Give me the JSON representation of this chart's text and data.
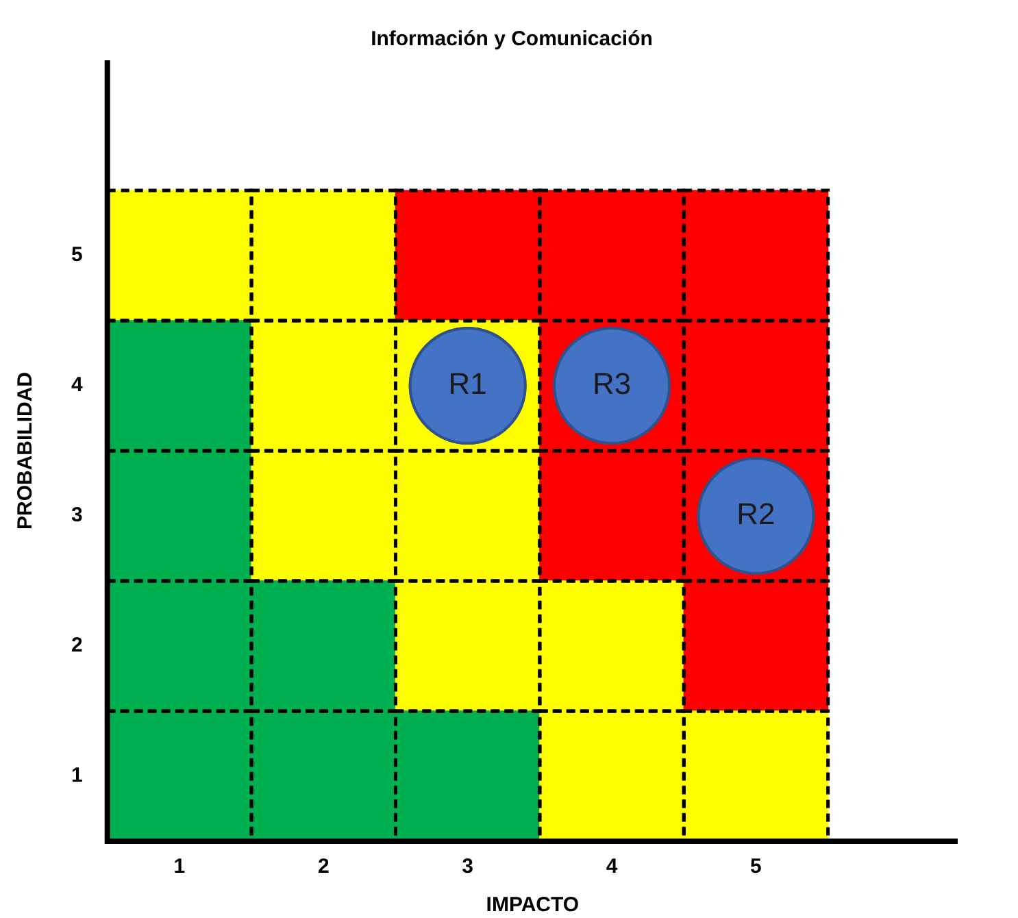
{
  "chart_data": {
    "type": "bar",
    "title": "Información y Comunicación",
    "xlabel": "IMPACTO",
    "ylabel": "PROBABILIDAD",
    "x": [
      1,
      2,
      3,
      4,
      5
    ],
    "series": [
      {
        "values": [
          1,
          1,
          1,
          1,
          1
        ],
        "base": [
          0.5,
          0.5,
          0.5,
          0.5,
          0.5
        ],
        "colors": [
          "#00b050",
          "#00b050",
          "#00b050",
          "#ffff00",
          "#ffff00"
        ]
      },
      {
        "values": [
          1,
          1,
          1,
          1,
          1
        ],
        "base": [
          1.5,
          1.5,
          1.5,
          1.5,
          1.5
        ],
        "colors": [
          "#00b050",
          "#00b050",
          "#ffff00",
          "#ffff00",
          "#ff0000"
        ]
      },
      {
        "values": [
          1,
          1,
          1,
          1,
          1
        ],
        "base": [
          2.5,
          2.5,
          2.5,
          2.5,
          2.5
        ],
        "colors": [
          "#00b050",
          "#ffff00",
          "#ffff00",
          "#ff0000",
          "#ff0000"
        ]
      },
      {
        "values": [
          1,
          1,
          1,
          1,
          1
        ],
        "base": [
          3.5,
          3.5,
          3.5,
          3.5,
          3.5
        ],
        "colors": [
          "#00b050",
          "#ffff00",
          "#ffff00",
          "#ff0000",
          "#ff0000"
        ]
      },
      {
        "values": [
          1,
          1,
          1,
          1,
          1
        ],
        "base": [
          4.5,
          4.5,
          4.5,
          4.5,
          4.5
        ],
        "colors": [
          "#ffff00",
          "#ffff00",
          "#ff0000",
          "#ff0000",
          "#ff0000"
        ]
      },
      {
        "type": "scatter",
        "x": [
          3,
          5,
          4
        ],
        "values": [
          4,
          3,
          4
        ],
        "color": "#4472c4",
        "marker": "circle"
      }
    ],
    "annotations": [
      {
        "text": "R1",
        "x": 3,
        "y": 4
      },
      {
        "text": "R2",
        "x": 5,
        "y": 3
      },
      {
        "text": "R3",
        "x": 4,
        "y": 4
      }
    ],
    "xlim": [
      0.5,
      6.4
    ],
    "xticks": [
      1,
      2,
      3,
      4,
      5
    ],
    "ylim": [
      0.5,
      6.5
    ],
    "yticks": [
      1,
      2,
      3,
      4,
      5
    ],
    "grid": false,
    "legend": false
  }
}
